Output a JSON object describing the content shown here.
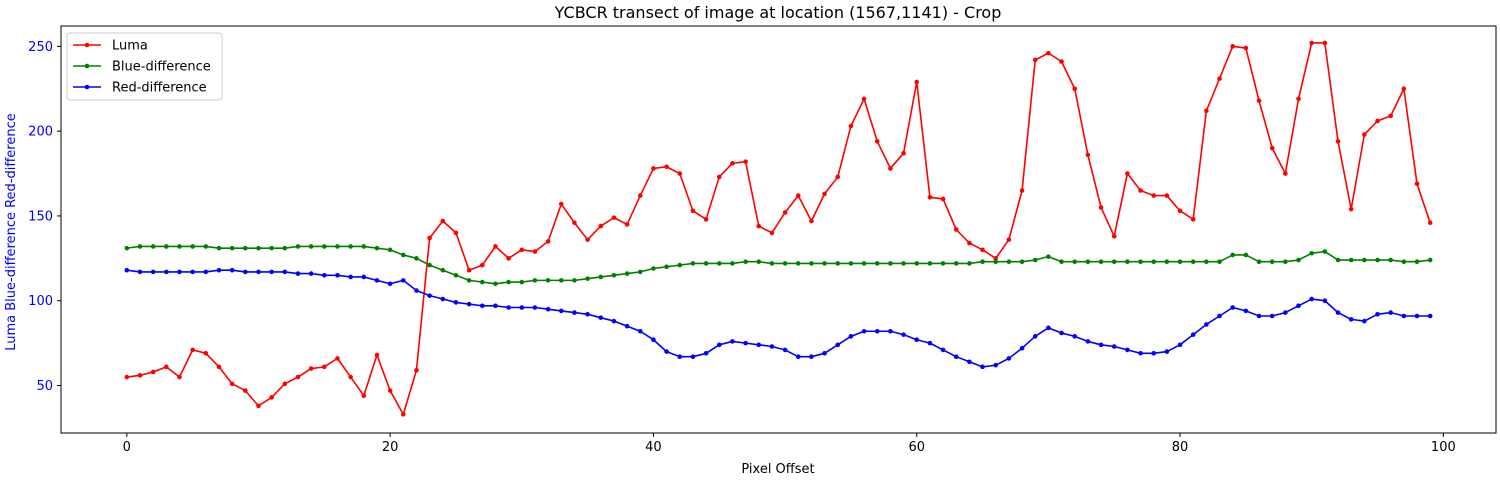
{
  "chart_data": {
    "type": "line",
    "title": "YCBCR transect of image at location (1567,1141) - Crop",
    "xlabel": "Pixel Offset",
    "ylabel": "Luma Blue-difference Red-difference",
    "xlim": [
      -5,
      104
    ],
    "ylim": [
      22,
      262
    ],
    "xticks": [
      0,
      20,
      40,
      60,
      80,
      100
    ],
    "yticks": [
      50,
      100,
      150,
      200,
      250
    ],
    "grid": false,
    "legend_position": "top-left",
    "ylabel_color": "#0000ff",
    "x": [
      0,
      1,
      2,
      3,
      4,
      5,
      6,
      7,
      8,
      9,
      10,
      11,
      12,
      13,
      14,
      15,
      16,
      17,
      18,
      19,
      20,
      21,
      22,
      23,
      24,
      25,
      26,
      27,
      28,
      29,
      30,
      31,
      32,
      33,
      34,
      35,
      36,
      37,
      38,
      39,
      40,
      41,
      42,
      43,
      44,
      45,
      46,
      47,
      48,
      49,
      50,
      51,
      52,
      53,
      54,
      55,
      56,
      57,
      58,
      59,
      60,
      61,
      62,
      63,
      64,
      65,
      66,
      67,
      68,
      69,
      70,
      71,
      72,
      73,
      74,
      75,
      76,
      77,
      78,
      79,
      80,
      81,
      82,
      83,
      84,
      85,
      86,
      87,
      88,
      89,
      90,
      91,
      92,
      93,
      94,
      95,
      96,
      97,
      98,
      99
    ],
    "series": [
      {
        "name": "Luma",
        "color": "#ff0000",
        "values": [
          55,
          56,
          58,
          61,
          55,
          71,
          69,
          61,
          51,
          47,
          38,
          43,
          51,
          55,
          60,
          61,
          66,
          55,
          44,
          68,
          47,
          33,
          59,
          137,
          147,
          140,
          118,
          121,
          132,
          125,
          130,
          129,
          135,
          157,
          146,
          136,
          144,
          149,
          145,
          162,
          178,
          179,
          175,
          153,
          148,
          173,
          181,
          182,
          144,
          140,
          152,
          162,
          147,
          163,
          173,
          203,
          219,
          194,
          178,
          187,
          229,
          161,
          160,
          142,
          134,
          130,
          125,
          136,
          165,
          242,
          246,
          241,
          225,
          186,
          155,
          138,
          175,
          165,
          162,
          162,
          153,
          148,
          212,
          231,
          250,
          249,
          218,
          190,
          175,
          219,
          252,
          252,
          194,
          154,
          198,
          206,
          209,
          225,
          169,
          146
        ]
      },
      {
        "name": "Blue-difference",
        "color": "#008000",
        "values": [
          131,
          132,
          132,
          132,
          132,
          132,
          132,
          131,
          131,
          131,
          131,
          131,
          131,
          132,
          132,
          132,
          132,
          132,
          132,
          131,
          130,
          127,
          125,
          121,
          118,
          115,
          112,
          111,
          110,
          111,
          111,
          112,
          112,
          112,
          112,
          113,
          114,
          115,
          116,
          117,
          119,
          120,
          121,
          122,
          122,
          122,
          122,
          123,
          123,
          122,
          122,
          122,
          122,
          122,
          122,
          122,
          122,
          122,
          122,
          122,
          122,
          122,
          122,
          122,
          122,
          123,
          123,
          123,
          123,
          124,
          126,
          123,
          123,
          123,
          123,
          123,
          123,
          123,
          123,
          123,
          123,
          123,
          123,
          123,
          127,
          127,
          123,
          123,
          123,
          124,
          128,
          129,
          124,
          124,
          124,
          124,
          124,
          123,
          123,
          124
        ]
      },
      {
        "name": "Red-difference",
        "color": "#0000ff",
        "values": [
          118,
          117,
          117,
          117,
          117,
          117,
          117,
          118,
          118,
          117,
          117,
          117,
          117,
          116,
          116,
          115,
          115,
          114,
          114,
          112,
          110,
          112,
          106,
          103,
          101,
          99,
          98,
          97,
          97,
          96,
          96,
          96,
          95,
          94,
          93,
          92,
          90,
          88,
          85,
          82,
          77,
          70,
          67,
          67,
          69,
          74,
          76,
          75,
          74,
          73,
          71,
          67,
          67,
          69,
          74,
          79,
          82,
          82,
          82,
          80,
          77,
          75,
          71,
          67,
          64,
          61,
          62,
          66,
          72,
          79,
          84,
          81,
          79,
          76,
          74,
          73,
          71,
          69,
          69,
          70,
          74,
          80,
          86,
          91,
          96,
          94,
          91,
          91,
          93,
          97,
          101,
          100,
          93,
          89,
          88,
          92,
          93,
          91,
          91,
          91
        ]
      }
    ]
  }
}
